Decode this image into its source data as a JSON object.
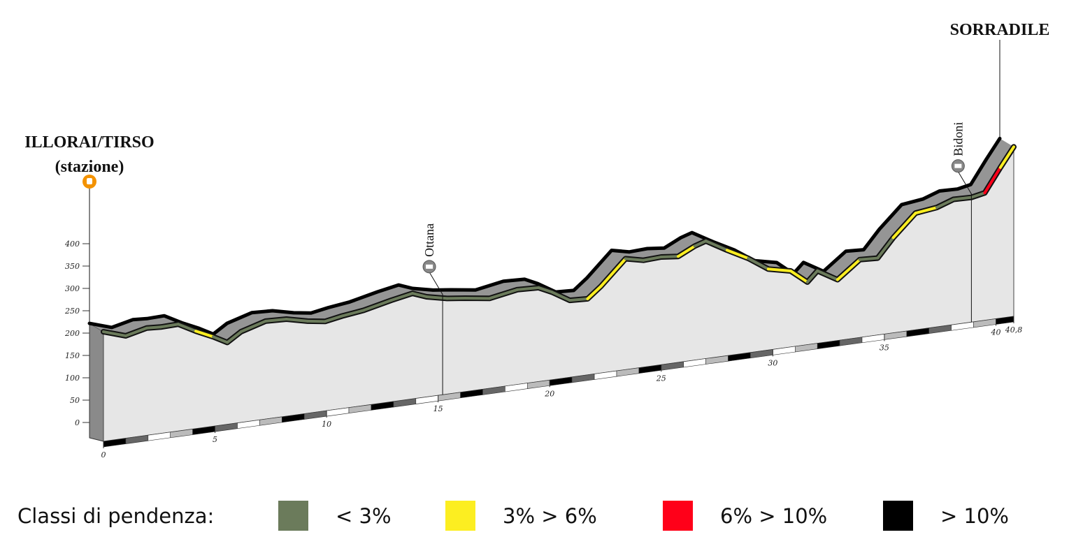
{
  "chart_data": {
    "type": "elevation-profile",
    "x": [
      0,
      1.0,
      1.94,
      2.57,
      3.35,
      4.14,
      4.92,
      5.55,
      6.17,
      7.27,
      8.2,
      9.15,
      9.93,
      10.7,
      11.66,
      12.9,
      13.85,
      14.48,
      15.4,
      16.2,
      17.3,
      18.55,
      19.5,
      20.1,
      20.9,
      21.7,
      22.3,
      23.4,
      24.2,
      25,
      25.76,
      26.5,
      27,
      27.95,
      28.9,
      29.8,
      30.8,
      31.55,
      32,
      32.9,
      33.9,
      34.7,
      35.4,
      36.4,
      37.35,
      38.1,
      38.9,
      39.5,
      40.2,
      40.8
    ],
    "values": [
      203,
      187,
      198,
      196,
      197,
      176,
      158,
      141,
      161,
      177,
      175,
      164,
      158,
      165,
      171,
      185,
      194,
      182,
      172,
      167,
      159,
      170,
      168,
      154,
      130,
      128,
      152,
      206,
      197,
      199,
      195,
      213,
      221,
      194,
      169,
      139,
      128,
      98,
      120,
      94,
      132,
      130,
      171,
      219,
      225,
      238,
      237,
      243,
      295,
      337
    ],
    "segment_class": [
      0,
      0,
      0,
      0,
      0,
      1,
      0,
      0,
      0,
      0,
      0,
      0,
      0,
      0,
      0,
      0,
      0,
      0,
      0,
      0,
      0,
      0,
      0,
      0,
      0,
      1,
      1,
      0,
      0,
      0,
      1,
      0,
      0,
      1,
      0,
      1,
      1,
      0,
      0,
      1,
      0,
      0,
      1,
      1,
      0,
      0,
      0,
      2,
      1
    ],
    "xlim": [
      0,
      40.8
    ],
    "xticks": [
      0,
      5,
      10,
      15,
      20,
      25,
      30,
      35,
      40,
      {
        "value": 40.8,
        "label": "40,8"
      }
    ],
    "ylim": [
      0,
      400
    ],
    "yticks": [
      0,
      50,
      100,
      150,
      200,
      250,
      300,
      350,
      400
    ],
    "places": [
      {
        "name": "ILLORAI/TIRSO",
        "sub": "(stazione)",
        "km": 0
      },
      {
        "name": "Ottana",
        "km": 15.2
      },
      {
        "name": "Bidoni",
        "km": 38.9
      },
      {
        "name": "SORRADILE",
        "km": 40.8
      }
    ],
    "legend": {
      "title": "Classi di pendenza:",
      "items": [
        {
          "label": "< 3%",
          "color": "#6b7b5b"
        },
        {
          "label": "3% > 6%",
          "color": "#fcee21"
        },
        {
          "label": "6% > 10%",
          "color": "#ff0019"
        },
        {
          "label": "> 10%",
          "color": "#000000"
        }
      ]
    }
  }
}
